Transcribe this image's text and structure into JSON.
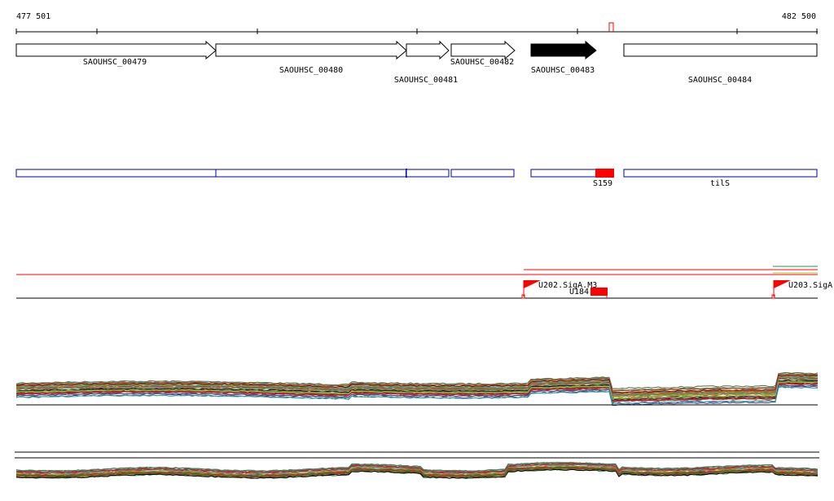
{
  "coordinates": {
    "start_label": "477 501",
    "end_label": "482 500"
  },
  "genes": [
    {
      "label": "SAOUHSC_00479",
      "filled": false
    },
    {
      "label": "SAOUHSC_00480",
      "filled": false
    },
    {
      "label": "SAOUHSC_00481",
      "filled": false
    },
    {
      "label": "SAOUHSC_00482",
      "filled": false
    },
    {
      "label": "SAOUHSC_00483",
      "filled": true
    },
    {
      "label": "SAOUHSC_00484",
      "filled": false
    }
  ],
  "annotations": [
    {
      "label": "S159",
      "color": "#ff0000"
    },
    {
      "label": "tilS",
      "color": "#0000aa"
    }
  ],
  "promoters": [
    {
      "label": "U202.SigA.M3"
    },
    {
      "label": "U203.SigA"
    }
  ],
  "segments": [
    {
      "label": "U184",
      "color": "#ff0000"
    }
  ],
  "colors": {
    "feature_outline": "#0000aa",
    "highlight": "#ff0000",
    "track_line": "#000000",
    "arrow_fill": "#000000"
  },
  "expression_palette": [
    "#556b2f",
    "#8b4513",
    "#2e8b57",
    "#b22222",
    "#4682b4",
    "#9acd32",
    "#cd853f",
    "#483d8b",
    "#d2691e",
    "#20b2aa",
    "#800000",
    "#6b8e23",
    "#a0522d",
    "#708090",
    "#228b22",
    "#8b008b",
    "#b8860b",
    "#5f9ea0",
    "#dc143c",
    "#000000"
  ]
}
